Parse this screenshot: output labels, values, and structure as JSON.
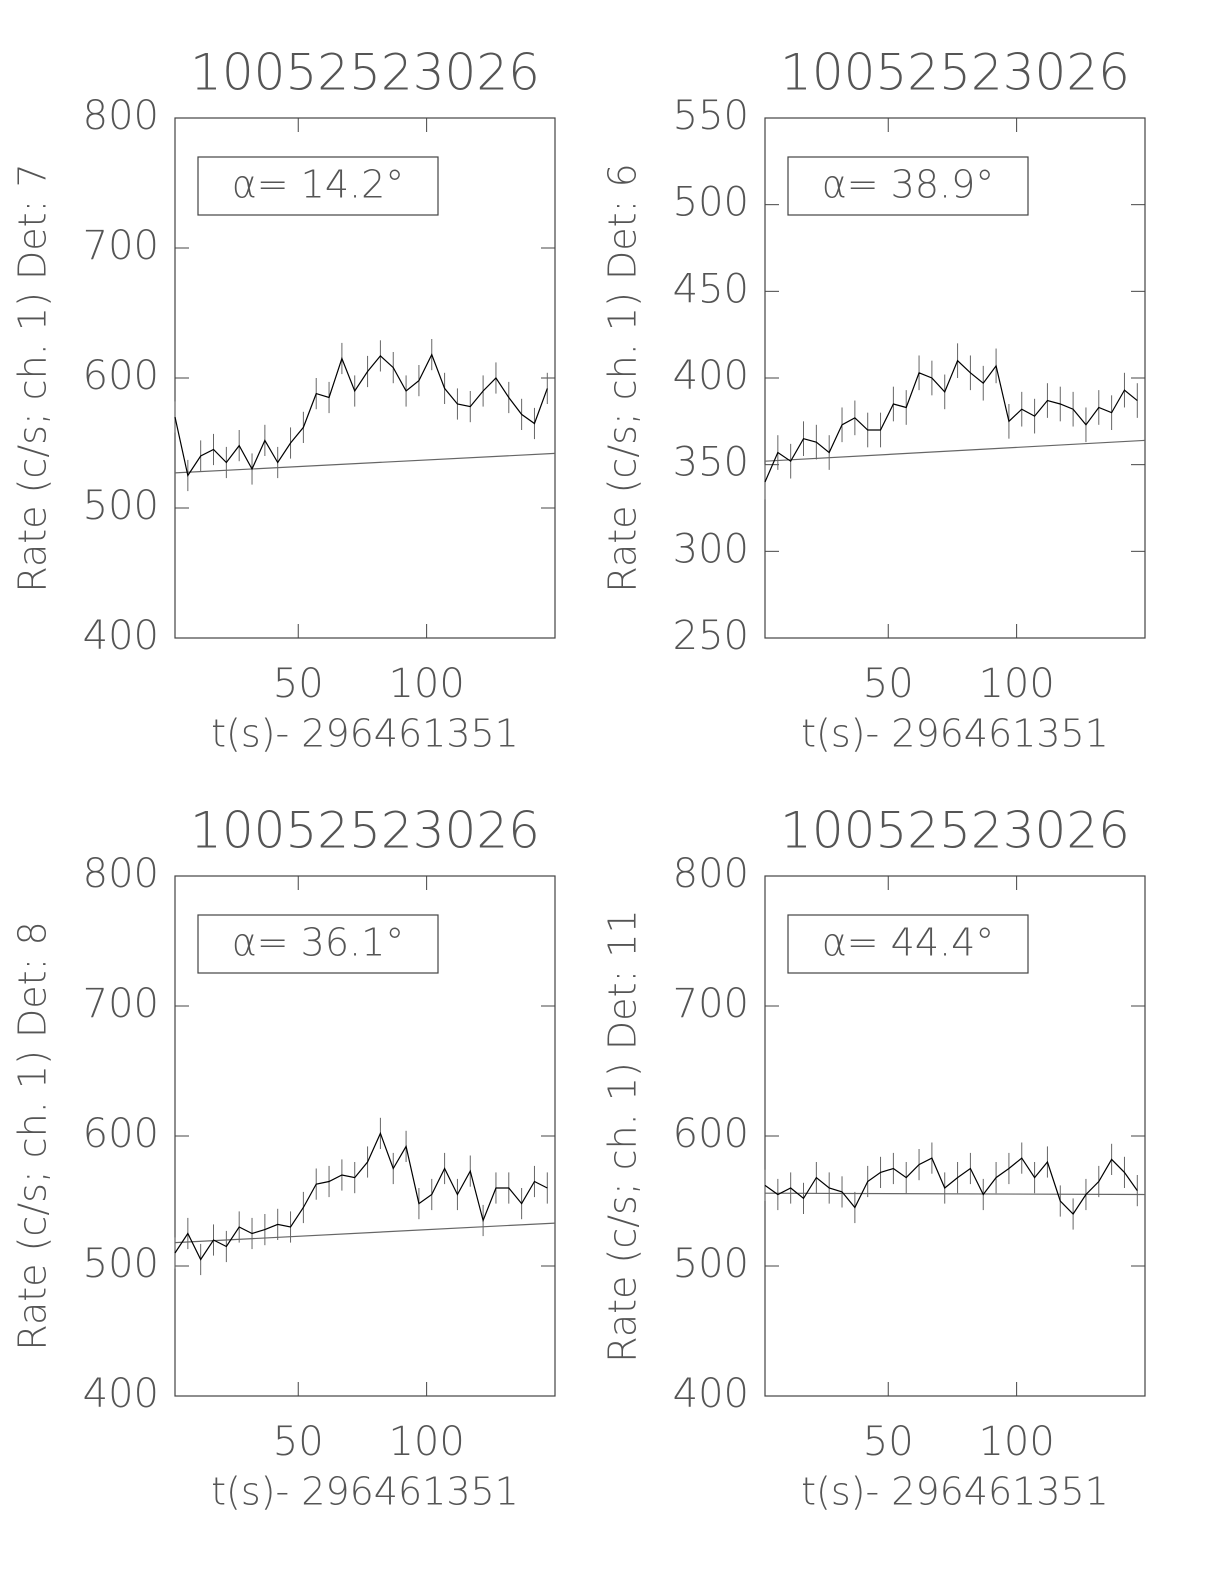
{
  "chart_data": [
    {
      "type": "line",
      "title": "10052523026",
      "xlabel": "t(s)- 296461351",
      "ylabel": "Rate (c/s; ch. 1) Det: 7",
      "annotation": "α= 14.2°",
      "x": [
        2,
        7,
        12,
        17,
        22,
        27,
        32,
        37,
        42,
        47,
        52,
        57,
        62,
        67,
        72,
        77,
        82,
        87,
        92,
        97,
        102,
        107,
        112,
        117,
        122,
        127,
        132,
        137,
        142,
        147
      ],
      "series": [
        {
          "color": "#000000",
          "error": 12,
          "values": [
            570,
            525,
            540,
            545,
            535,
            548,
            530,
            552,
            535,
            550,
            562,
            588,
            585,
            615,
            590,
            605,
            617,
            608,
            590,
            598,
            618,
            592,
            580,
            578,
            590,
            600,
            585,
            572,
            565,
            592
          ]
        }
      ],
      "baseline": {
        "color": "#666666",
        "x": [
          2,
          150
        ],
        "values": [
          527,
          542
        ]
      },
      "xlim": [
        2,
        150
      ],
      "xticks": [
        50,
        100
      ],
      "ylim": [
        400,
        800
      ],
      "yticks": [
        400,
        500,
        600,
        700,
        800
      ]
    },
    {
      "type": "line",
      "title": "10052523026",
      "xlabel": "t(s)- 296461351",
      "ylabel": "Rate (c/s; ch. 1) Det: 6",
      "annotation": "α= 38.9°",
      "x": [
        2,
        7,
        12,
        17,
        22,
        27,
        32,
        37,
        42,
        47,
        52,
        57,
        62,
        67,
        72,
        77,
        82,
        87,
        92,
        97,
        102,
        107,
        112,
        117,
        122,
        127,
        132,
        137,
        142,
        147
      ],
      "series": [
        {
          "color": "#000000",
          "error": 10,
          "values": [
            340,
            357,
            352,
            365,
            363,
            357,
            373,
            377,
            370,
            370,
            385,
            383,
            403,
            400,
            392,
            410,
            403,
            397,
            407,
            375,
            382,
            378,
            387,
            385,
            382,
            373,
            383,
            380,
            393,
            387
          ]
        }
      ],
      "baseline": {
        "color": "#666666",
        "x": [
          2,
          150
        ],
        "values": [
          352,
          364
        ]
      },
      "xlim": [
        2,
        150
      ],
      "xticks": [
        50,
        100
      ],
      "ylim": [
        250,
        550
      ],
      "yticks": [
        250,
        300,
        350,
        400,
        450,
        500,
        550
      ]
    },
    {
      "type": "line",
      "title": "10052523026",
      "xlabel": "t(s)- 296461351",
      "ylabel": "Rate (c/s; ch. 1) Det: 8",
      "annotation": "α= 36.1°",
      "x": [
        2,
        7,
        12,
        17,
        22,
        27,
        32,
        37,
        42,
        47,
        52,
        57,
        62,
        67,
        72,
        77,
        82,
        87,
        92,
        97,
        102,
        107,
        112,
        117,
        122,
        127,
        132,
        137,
        142,
        147
      ],
      "series": [
        {
          "color": "#000000",
          "error": 12,
          "values": [
            510,
            525,
            505,
            520,
            515,
            530,
            525,
            528,
            532,
            530,
            545,
            563,
            565,
            570,
            568,
            580,
            602,
            575,
            592,
            548,
            555,
            575,
            555,
            573,
            535,
            560,
            560,
            548,
            565,
            560
          ]
        }
      ],
      "baseline": {
        "color": "#666666",
        "x": [
          2,
          150
        ],
        "values": [
          518,
          533
        ]
      },
      "xlim": [
        2,
        150
      ],
      "xticks": [
        50,
        100
      ],
      "ylim": [
        400,
        800
      ],
      "yticks": [
        400,
        500,
        600,
        700,
        800
      ]
    },
    {
      "type": "line",
      "title": "10052523026",
      "xlabel": "t(s)- 296461351",
      "ylabel": "Rate (c/s; ch. 1) Det: 11",
      "annotation": "α= 44.4°",
      "x": [
        2,
        7,
        12,
        17,
        22,
        27,
        32,
        37,
        42,
        47,
        52,
        57,
        62,
        67,
        72,
        77,
        82,
        87,
        92,
        97,
        102,
        107,
        112,
        117,
        122,
        127,
        132,
        137,
        142,
        147
      ],
      "series": [
        {
          "color": "#000000",
          "error": 12,
          "values": [
            562,
            555,
            560,
            552,
            568,
            560,
            557,
            545,
            565,
            572,
            575,
            568,
            578,
            583,
            560,
            568,
            575,
            555,
            568,
            575,
            583,
            568,
            580,
            550,
            540,
            555,
            565,
            582,
            572,
            558
          ]
        }
      ],
      "baseline": {
        "color": "#666666",
        "x": [
          2,
          150
        ],
        "values": [
          556,
          555
        ]
      },
      "xlim": [
        2,
        150
      ],
      "xticks": [
        50,
        100
      ],
      "ylim": [
        400,
        800
      ],
      "yticks": [
        400,
        500,
        600,
        700,
        800
      ]
    }
  ]
}
